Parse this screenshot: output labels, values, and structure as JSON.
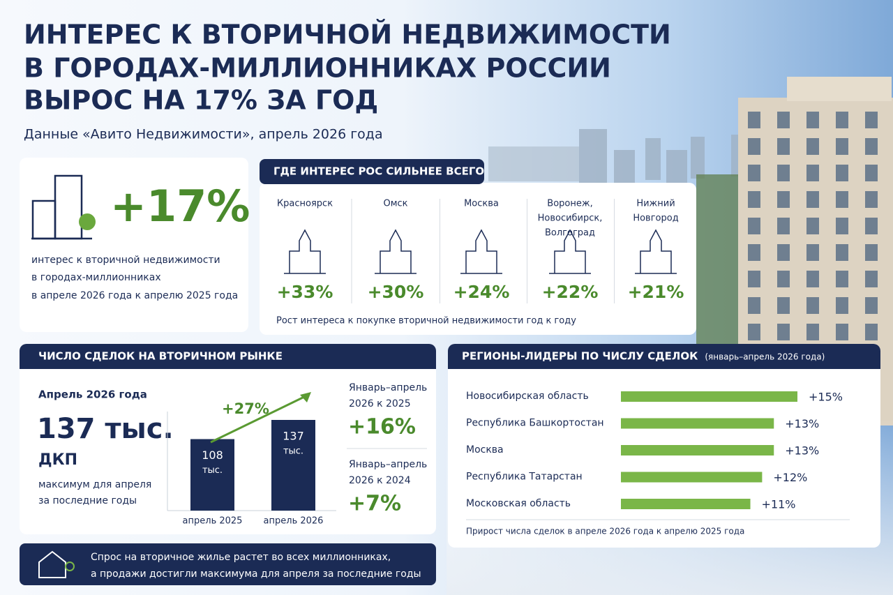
{
  "header": {
    "title_lines": [
      "ИНТЕРЕС К ВТОРИЧНОЙ НЕДВИЖИМОСТИ",
      "В ГОРОДАХ-МИЛЛИОННИКАХ РОССИИ",
      "ВЫРОС НА 17% ЗА ГОД"
    ],
    "subtitle": "Данные «Авито Недвижимости», апрель 2026 года"
  },
  "main_stat": {
    "label": "+17%",
    "caption_lines": [
      "интерес к вторичной недвижимости",
      "в городах-миллионниках",
      "в апреле 2026 года к апрелю 2025 года"
    ]
  },
  "growth": {
    "title": "ГДЕ ИНТЕРЕС РОС СИЛЬНЕЕ ВСЕГО",
    "cities": [
      {
        "name_lines": [
          "Красноярск"
        ],
        "label": "+33%"
      },
      {
        "name_lines": [
          "Омск"
        ],
        "label": "+30%"
      },
      {
        "name_lines": [
          "Москва"
        ],
        "label": "+24%"
      },
      {
        "name_lines": [
          "Воронеж,",
          "Новосибирск,",
          "Волгоград"
        ],
        "label": "+22%"
      },
      {
        "name_lines": [
          "Нижний",
          "Новгород"
        ],
        "label": "+21%"
      }
    ],
    "note": "Рост интереса к покупке вторичной недвижимости год к году"
  },
  "deals": {
    "title": "ЧИСЛО СДЕЛОК НА ВТОРИЧНОМ РЫНКЕ",
    "period": "Апрель 2026 года",
    "big": "137 тыс.",
    "unit": "ДКП",
    "caption_lines": [
      "максимум для апреля",
      "за последние годы"
    ],
    "bars": [
      {
        "value": 108,
        "label_lines": [
          "108",
          "тыс."
        ],
        "category": "апрель 2025"
      },
      {
        "value": 137,
        "label_lines": [
          "137",
          "тыс."
        ],
        "category": "апрель 2026"
      }
    ],
    "growth": "+27%",
    "comparisons": [
      {
        "label_lines": [
          "Январь–апрель",
          "2026 к 2025"
        ],
        "label": "+16%"
      },
      {
        "label_lines": [
          "Январь–апрель",
          "2026 к 2024"
        ],
        "label": "+7%"
      }
    ]
  },
  "leaders": {
    "title": "РЕГИОНЫ-ЛИДЕРЫ ПО ЧИСЛУ СДЕЛОК",
    "period": "(январь–апрель 2026 года)",
    "items": [
      {
        "name": "Новосибирская область",
        "value": 15,
        "label": "+15%"
      },
      {
        "name": "Республика Башкортостан",
        "value": 13,
        "label": "+13%"
      },
      {
        "name": "Москва",
        "value": 13,
        "label": "+13%"
      },
      {
        "name": "Республика Татарстан",
        "value": 12,
        "label": "+12%"
      },
      {
        "name": "Московская область",
        "value": 11,
        "label": "+11%"
      }
    ],
    "color": "#7ab648",
    "note": "Прирост числа сделок в апреле 2026 года к апрелю 2025 года"
  },
  "footer": {
    "lines": [
      "Спрос на вторичное жилье растет во всех миллионниках,",
      "а продажи достигли максимума для апреля за последние годы"
    ]
  }
}
